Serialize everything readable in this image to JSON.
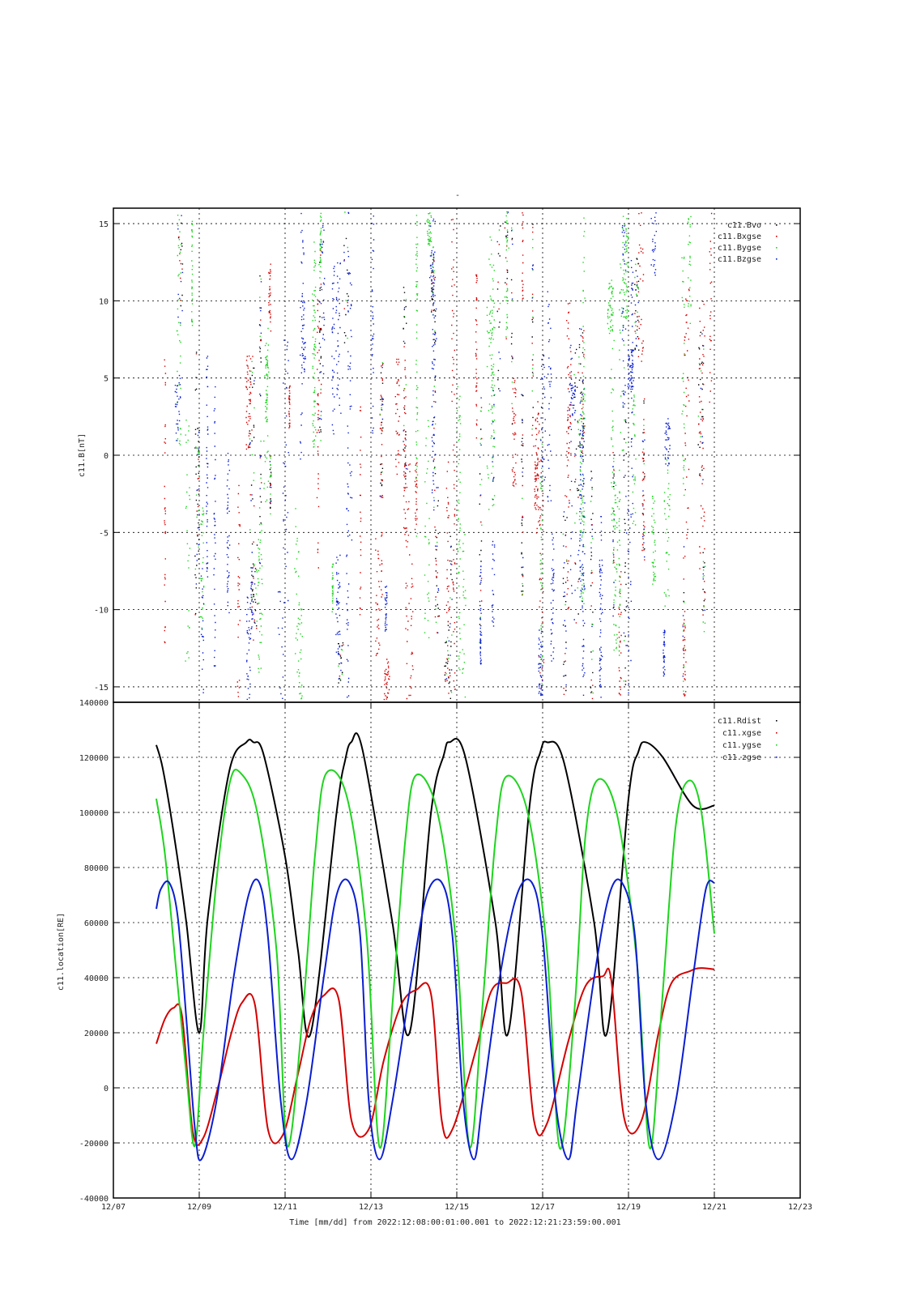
{
  "figure": {
    "top_label": "-",
    "xlabel": "Time [mm/dd]  from 2022:12:08:00:01:00.001  to  2022:12:21:23:59:00.001"
  },
  "chart_data": [
    {
      "type": "scatter",
      "panel": "upper",
      "ylabel": "c11.B[nT]",
      "ylim": [
        -16,
        16
      ],
      "yticks": [
        -15,
        -10,
        -5,
        0,
        5,
        10,
        15
      ],
      "ytick_labels": [
        "-15",
        "-10",
        "-5",
        "0",
        "5",
        "10",
        "15"
      ],
      "xlim_days_from_12_07": [
        0,
        16
      ],
      "legend_position": "top-right",
      "grid": true,
      "colors": {
        "black": "#000000",
        "red": "#d40000",
        "green": "#1ed41e",
        "blue": "#0a1ecf"
      },
      "legend": [
        {
          "name": "c11.Bvo",
          "color": "#000000"
        },
        {
          "name": "c11.Bxgse",
          "color": "#d40000"
        },
        {
          "name": "c11.Bygse",
          "color": "#1ed41e"
        },
        {
          "name": "c11.Bzgse",
          "color": "#0a1ecf"
        }
      ],
      "data_range": {
        "x_start": "12/08 00:01",
        "x_end": "12/21 23:59"
      }
    },
    {
      "type": "line",
      "panel": "lower",
      "ylabel": "c11.location[RE]",
      "ylim": [
        -40000,
        140000
      ],
      "yticks": [
        -40000,
        -20000,
        0,
        20000,
        40000,
        60000,
        80000,
        100000,
        120000,
        140000
      ],
      "ytick_labels": [
        "-40000",
        "-20000",
        "0",
        "20000",
        "40000",
        "60000",
        "80000",
        "100000",
        "120000",
        "140000"
      ],
      "xticks": [
        "12/07",
        "12/09",
        "12/11",
        "12/13",
        "12/15",
        "12/17",
        "12/19",
        "12/21",
        "12/23"
      ],
      "legend_position": "top-right",
      "grid": true,
      "series": [
        {
          "name": "c11.Rdist",
          "color": "#000000",
          "perigee_dates": [
            "12/09 00:00",
            "12/11 06:40",
            "12/13 13:20",
            "12/15 20:00",
            "12/18 02:40",
            "12/20 09:20"
          ],
          "x_days": [
            1.0,
            1.15,
            1.4,
            1.7,
            2.0,
            2.2,
            2.7,
            3.1,
            3.26,
            3.5,
            4.0,
            4.3,
            4.6,
            5.2,
            5.4,
            5.54,
            5.8,
            6.5,
            6.9,
            7.4,
            7.7,
            7.83,
            8.2,
            8.9,
            9.2,
            9.7,
            9.95,
            10.1,
            10.5,
            11.2,
            11.5,
            12.0,
            12.23,
            12.4,
            12.8,
            13.5,
            14.0
          ],
          "y": [
            124500,
            116000,
            93000,
            60000,
            20000,
            62000,
            115000,
            125500,
            125500,
            121000,
            84000,
            50000,
            20000,
            100000,
            119000,
            125500,
            123000,
            60000,
            20000,
            100000,
            121000,
            125500,
            120000,
            60000,
            20000,
            103000,
            122000,
            125500,
            118000,
            60000,
            20000,
            105000,
            122000,
            125500,
            120000,
            102500,
            102500
          ]
        },
        {
          "name": "c11.xgse",
          "color": "#d40000",
          "x_days": [
            1.0,
            1.2,
            1.4,
            1.6,
            1.85,
            2.1,
            2.45,
            2.75,
            3.0,
            3.3,
            3.6,
            3.95,
            4.3,
            4.6,
            4.9,
            5.25,
            5.55,
            5.95,
            6.3,
            6.7,
            7.05,
            7.4,
            7.65,
            7.9,
            8.45,
            8.8,
            9.15,
            9.5,
            9.8,
            10.1,
            10.6,
            11.0,
            11.4,
            11.6,
            11.9,
            12.3,
            12.7,
            13.0,
            13.45,
            13.7,
            14.0
          ],
          "y": [
            16000,
            25000,
            29000,
            26000,
            -16000,
            -18000,
            1000,
            20000,
            31000,
            30000,
            -15000,
            -17000,
            5000,
            25000,
            33500,
            32000,
            -12000,
            -15000,
            10000,
            30000,
            35500,
            34000,
            -12000,
            -15000,
            14000,
            35000,
            38000,
            35000,
            -12000,
            -13000,
            17000,
            37000,
            40500,
            39000,
            -11000,
            -12000,
            20000,
            38000,
            42500,
            43500,
            43000
          ]
        },
        {
          "name": "c11.ygse",
          "color": "#1ed41e",
          "x_days": [
            1.0,
            1.2,
            1.45,
            1.7,
            1.9,
            2.1,
            2.4,
            2.7,
            2.95,
            3.35,
            3.8,
            4.05,
            4.4,
            4.7,
            4.95,
            5.45,
            5.9,
            6.2,
            6.5,
            6.8,
            7.05,
            7.55,
            8.0,
            8.3,
            8.6,
            8.9,
            9.15,
            9.65,
            10.1,
            10.4,
            10.75,
            11.0,
            11.3,
            11.75,
            12.2,
            12.5,
            12.8,
            13.1,
            13.4,
            13.7,
            14.0
          ],
          "y": [
            105000,
            85000,
            45000,
            5000,
            -21000,
            20000,
            75000,
            110000,
            114500,
            100000,
            50000,
            -21000,
            25000,
            85000,
            114000,
            105000,
            55000,
            -21500,
            30000,
            90000,
            113500,
            100000,
            50000,
            -21500,
            30000,
            90000,
            113000,
            100000,
            50000,
            -22000,
            30000,
            92000,
            112000,
            98000,
            45000,
            -22000,
            35000,
            95000,
            111500,
            100000,
            56000
          ]
        },
        {
          "name": "c11.zgse",
          "color": "#0a1ecf",
          "x_days": [
            1.0,
            1.1,
            1.3,
            1.5,
            1.7,
            1.9,
            2.05,
            2.4,
            2.8,
            3.15,
            3.4,
            3.6,
            3.9,
            4.15,
            4.5,
            4.9,
            5.2,
            5.5,
            5.75,
            5.95,
            6.2,
            6.5,
            6.95,
            7.3,
            7.65,
            7.9,
            8.15,
            8.4,
            8.6,
            9.0,
            9.4,
            9.75,
            10.0,
            10.3,
            10.6,
            10.8,
            11.2,
            11.55,
            11.85,
            12.15,
            12.4,
            12.7,
            13.1,
            13.5,
            13.8,
            14.0
          ],
          "y": [
            65000,
            72000,
            74500,
            62000,
            25000,
            -15000,
            -26000,
            -5000,
            40000,
            70000,
            74500,
            55000,
            -5000,
            -26000,
            -5000,
            40000,
            70000,
            74500,
            55000,
            -5000,
            -26000,
            -5000,
            40000,
            70000,
            74500,
            55000,
            -5000,
            -26000,
            -5000,
            40000,
            70000,
            74500,
            55000,
            -5000,
            -26000,
            -5000,
            40000,
            70000,
            74500,
            55000,
            -5000,
            -26000,
            -5000,
            40000,
            72000,
            74500
          ]
        }
      ]
    }
  ]
}
